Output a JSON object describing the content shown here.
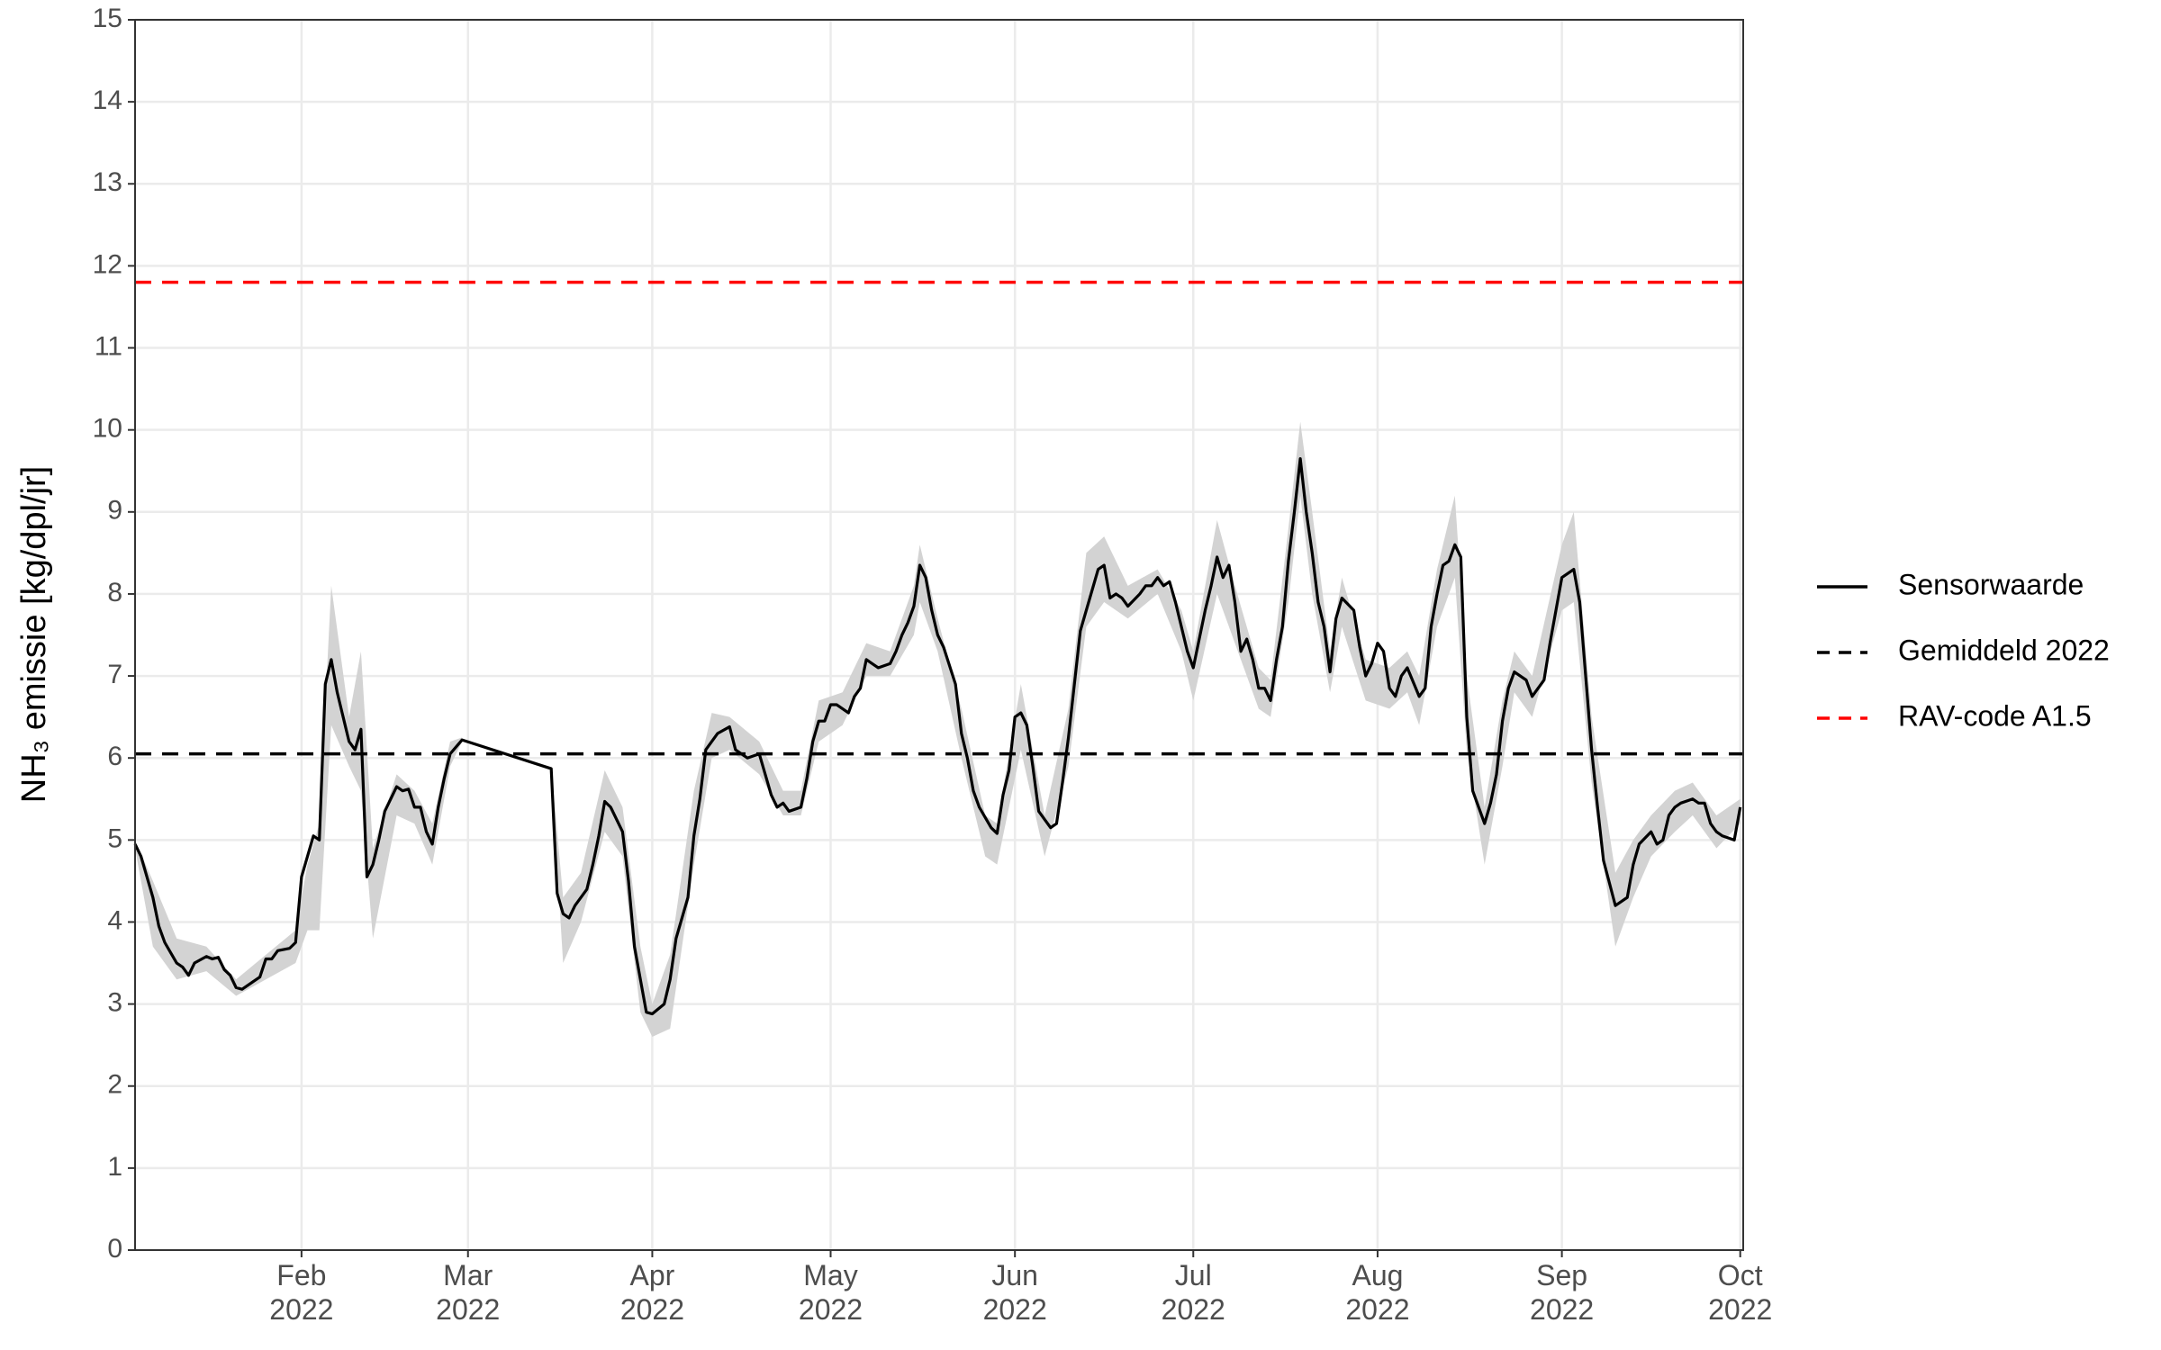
{
  "chart_data": {
    "type": "line",
    "y_label": "NH₃ emissie [kg/dpl/jr]",
    "xlim": [
      3,
      273.5
    ],
    "xticks": [
      {
        "value": 31,
        "label": "Feb\n2022"
      },
      {
        "value": 59,
        "label": "Mar\n2022"
      },
      {
        "value": 90,
        "label": "Apr\n2022"
      },
      {
        "value": 120,
        "label": "May\n2022"
      },
      {
        "value": 151,
        "label": "Jun\n2022"
      },
      {
        "value": 181,
        "label": "Jul\n2022"
      },
      {
        "value": 212,
        "label": "Aug\n2022"
      },
      {
        "value": 243,
        "label": "Sep\n2022"
      },
      {
        "value": 273,
        "label": "Oct\n2022"
      }
    ],
    "ylim": [
      0,
      15
    ],
    "yticks": [
      0,
      1,
      2,
      3,
      4,
      5,
      6,
      7,
      8,
      9,
      10,
      11,
      12,
      13,
      14,
      15
    ],
    "grid": true,
    "legend": "right",
    "series": [
      {
        "name": "Sensorwaarde",
        "color": "#000000",
        "x": [
          3,
          4,
          6,
          7,
          8,
          10,
          11,
          12,
          13,
          15,
          16,
          17,
          18,
          19,
          20,
          21,
          23,
          24,
          25,
          26,
          27,
          29,
          30,
          31,
          32,
          33,
          34,
          35,
          36,
          37,
          38,
          39,
          40,
          41,
          42,
          43,
          44,
          45,
          47,
          48,
          49,
          50,
          51,
          52,
          53,
          54,
          55,
          56,
          58,
          73,
          74,
          75,
          76,
          77,
          79,
          80,
          81,
          82,
          83,
          85,
          86,
          87,
          88,
          89,
          90,
          92,
          93,
          94,
          96,
          97,
          98,
          99,
          100,
          101,
          103,
          104,
          105,
          106,
          108,
          109,
          110,
          111,
          112,
          113,
          115,
          116,
          117,
          118,
          119,
          120,
          121,
          123,
          124,
          125,
          126,
          127,
          128,
          130,
          131,
          132,
          133,
          134,
          135,
          136,
          137,
          138,
          139,
          141,
          142,
          143,
          144,
          145,
          147,
          148,
          149,
          150,
          151,
          152,
          153,
          154,
          155,
          157,
          158,
          159,
          160,
          161,
          162,
          164,
          165,
          166,
          167,
          168,
          169,
          170,
          172,
          173,
          174,
          175,
          176,
          177,
          178,
          180,
          181,
          183,
          184,
          185,
          186,
          187,
          188,
          189,
          190,
          191,
          192,
          193,
          194,
          195,
          196,
          197,
          198,
          199,
          200,
          201,
          202,
          203,
          204,
          205,
          206,
          208,
          209,
          210,
          211,
          212,
          213,
          214,
          215,
          216,
          217,
          219,
          220,
          221,
          222,
          223,
          224,
          225,
          226,
          227,
          228,
          230,
          231,
          232,
          233,
          234,
          235,
          237,
          238,
          239,
          240,
          241,
          242,
          243,
          245,
          246,
          247,
          248,
          249,
          250,
          252,
          253,
          254,
          255,
          256,
          258,
          259,
          260,
          261,
          262,
          263,
          265,
          266,
          267,
          268,
          269,
          270,
          272,
          273
        ],
        "values": [
          4.95,
          4.8,
          4.3,
          3.95,
          3.75,
          3.5,
          3.45,
          3.35,
          3.5,
          3.58,
          3.55,
          3.57,
          3.42,
          3.35,
          3.2,
          3.18,
          3.28,
          3.33,
          3.55,
          3.55,
          3.65,
          3.68,
          3.75,
          4.55,
          4.8,
          5.05,
          5.0,
          6.9,
          7.2,
          6.8,
          6.5,
          6.2,
          6.1,
          6.35,
          4.55,
          4.7,
          5.0,
          5.35,
          5.65,
          5.6,
          5.62,
          5.4,
          5.4,
          5.1,
          4.95,
          5.4,
          5.75,
          6.05,
          6.22,
          5.87,
          4.35,
          4.1,
          4.05,
          4.2,
          4.4,
          4.7,
          5.05,
          5.47,
          5.4,
          5.1,
          4.5,
          3.7,
          3.3,
          2.9,
          2.88,
          3.0,
          3.3,
          3.8,
          4.3,
          5.05,
          5.5,
          6.1,
          6.2,
          6.3,
          6.38,
          6.1,
          6.05,
          6.0,
          6.05,
          5.8,
          5.55,
          5.4,
          5.45,
          5.35,
          5.4,
          5.75,
          6.2,
          6.45,
          6.45,
          6.65,
          6.65,
          6.55,
          6.75,
          6.85,
          7.2,
          7.15,
          7.1,
          7.15,
          7.3,
          7.5,
          7.65,
          7.85,
          8.35,
          8.2,
          7.8,
          7.5,
          7.35,
          6.9,
          6.3,
          6.0,
          5.6,
          5.4,
          5.15,
          5.08,
          5.55,
          5.85,
          6.5,
          6.55,
          6.4,
          5.9,
          5.35,
          5.15,
          5.2,
          5.7,
          6.25,
          6.9,
          7.55,
          8.05,
          8.3,
          8.35,
          7.95,
          8.0,
          7.95,
          7.85,
          8.0,
          8.1,
          8.1,
          8.2,
          8.1,
          8.15,
          7.9,
          7.3,
          7.1,
          7.8,
          8.1,
          8.45,
          8.2,
          8.35,
          7.9,
          7.3,
          7.45,
          7.2,
          6.85,
          6.85,
          6.7,
          7.2,
          7.6,
          8.4,
          9.0,
          9.65,
          9.0,
          8.5,
          7.9,
          7.6,
          7.05,
          7.7,
          7.95,
          7.8,
          7.35,
          7.0,
          7.15,
          7.4,
          7.3,
          6.85,
          6.75,
          7.0,
          7.1,
          6.75,
          6.85,
          7.6,
          8.0,
          8.35,
          8.4,
          8.6,
          8.45,
          6.5,
          5.6,
          5.2,
          5.45,
          5.8,
          6.45,
          6.85,
          7.05,
          6.95,
          6.75,
          6.85,
          6.95,
          7.4,
          7.8,
          8.2,
          8.3,
          7.9,
          7.0,
          6.1,
          5.4,
          4.75,
          4.2,
          4.25,
          4.3,
          4.7,
          4.95,
          5.1,
          4.95,
          5.0,
          5.3,
          5.4,
          5.45,
          5.5,
          5.45,
          5.45,
          5.2,
          5.1,
          5.05,
          5.0,
          5.4
        ]
      }
    ],
    "band": {
      "color": "#d3d3d3",
      "x": [
        3,
        6,
        10,
        15,
        20,
        25,
        30,
        32,
        34,
        36,
        39,
        41,
        43,
        47,
        50,
        53,
        56,
        58,
        null,
        73,
        75,
        78,
        82,
        85,
        88,
        90,
        93,
        97,
        100,
        103,
        108,
        112,
        115,
        118,
        122,
        126,
        130,
        134,
        135,
        138,
        142,
        146,
        148,
        152,
        156,
        160,
        163,
        166,
        170,
        175,
        179,
        181,
        185,
        188,
        192,
        194,
        197,
        199,
        201,
        204,
        206,
        210,
        214,
        217,
        219,
        222,
        225,
        227,
        230,
        233,
        235,
        238,
        243,
        245,
        248,
        252,
        255,
        258,
        262,
        265,
        269,
        273
      ],
      "lower": [
        4.9,
        3.7,
        3.3,
        3.4,
        3.1,
        3.3,
        3.5,
        3.9,
        3.9,
        6.4,
        5.9,
        5.6,
        3.8,
        5.3,
        5.2,
        4.7,
        5.9,
        6.2,
        null,
        5.85,
        3.5,
        4.0,
        5.1,
        4.8,
        2.9,
        2.6,
        2.7,
        4.7,
        6.0,
        6.1,
        5.8,
        5.3,
        5.3,
        6.2,
        6.4,
        7.0,
        7.0,
        7.5,
        7.9,
        7.3,
        6.0,
        4.8,
        4.7,
        6.1,
        4.8,
        5.9,
        7.6,
        7.9,
        7.7,
        8.0,
        7.3,
        6.7,
        8.0,
        7.4,
        6.6,
        6.5,
        7.9,
        9.2,
        8.0,
        6.8,
        7.6,
        6.7,
        6.6,
        6.8,
        6.4,
        7.6,
        8.2,
        6.1,
        4.7,
        5.9,
        6.8,
        6.5,
        7.8,
        7.9,
        5.7,
        3.7,
        4.3,
        4.8,
        5.1,
        5.3,
        4.9,
        5.2
      ],
      "upper": [
        5.0,
        4.5,
        3.8,
        3.7,
        3.3,
        3.6,
        3.9,
        4.7,
        5.2,
        8.1,
        6.5,
        7.3,
        4.9,
        5.8,
        5.6,
        5.2,
        6.2,
        6.25,
        null,
        5.9,
        4.3,
        4.6,
        5.85,
        5.4,
        3.7,
        3.0,
        3.6,
        5.6,
        6.55,
        6.5,
        6.2,
        5.6,
        5.6,
        6.7,
        6.8,
        7.4,
        7.3,
        8.1,
        8.6,
        7.7,
        6.6,
        5.3,
        5.2,
        6.9,
        5.3,
        6.6,
        8.5,
        8.7,
        8.1,
        8.3,
        7.8,
        7.3,
        8.9,
        8.1,
        7.1,
        6.95,
        8.8,
        10.1,
        9.0,
        7.3,
        8.2,
        7.2,
        7.1,
        7.3,
        7.0,
        8.3,
        9.2,
        7.0,
        5.4,
        6.7,
        7.3,
        7.0,
        8.6,
        9.0,
        6.5,
        4.6,
        5.0,
        5.3,
        5.6,
        5.7,
        5.3,
        5.5
      ]
    },
    "reference_lines": [
      {
        "name": "Gemiddeld 2022",
        "value": 6.05,
        "color": "#000000"
      },
      {
        "name": "RAV-code A1.5",
        "value": 11.8,
        "color": "#ff0000"
      }
    ]
  }
}
